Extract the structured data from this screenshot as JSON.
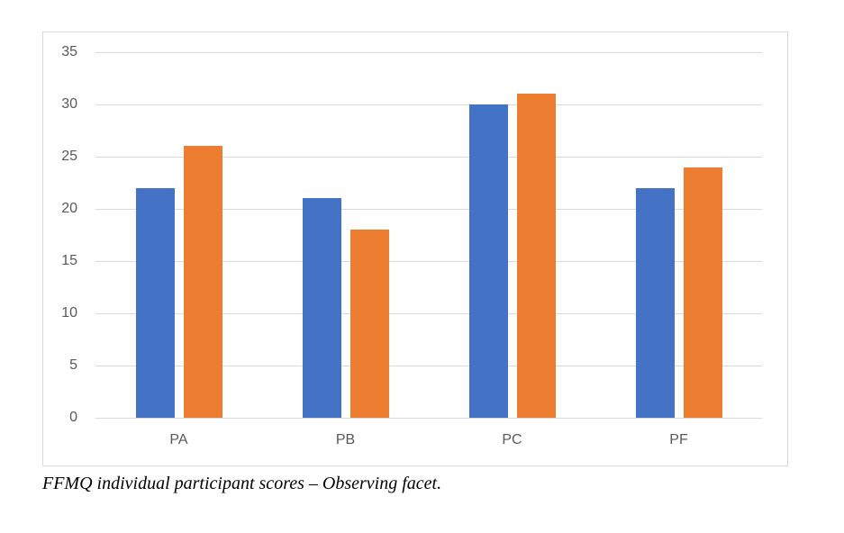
{
  "caption": "FFMQ individual participant scores – Observing facet.",
  "colors": {
    "series_blue": "#4472C4",
    "series_orange": "#ED7D31",
    "gridline": "#D9D9D9",
    "axis_text": "#595959",
    "chart_border": "#D9D9D9",
    "background": "#FFFFFF"
  },
  "chart_data": {
    "type": "bar",
    "title": "",
    "xlabel": "",
    "ylabel": "",
    "categories": [
      "PA",
      "PB",
      "PC",
      "PF"
    ],
    "series": [
      {
        "name": "series-1-blue",
        "color": "#4472C4",
        "values": [
          22,
          21,
          30,
          22
        ]
      },
      {
        "name": "series-2-orange",
        "color": "#ED7D31",
        "values": [
          26,
          18,
          31,
          24
        ]
      }
    ],
    "ylim": [
      0,
      35
    ],
    "ytick_step": 5,
    "ytick_labels": [
      "0",
      "5",
      "10",
      "15",
      "20",
      "25",
      "30",
      "35"
    ],
    "grid": true,
    "legend_position": "none"
  }
}
